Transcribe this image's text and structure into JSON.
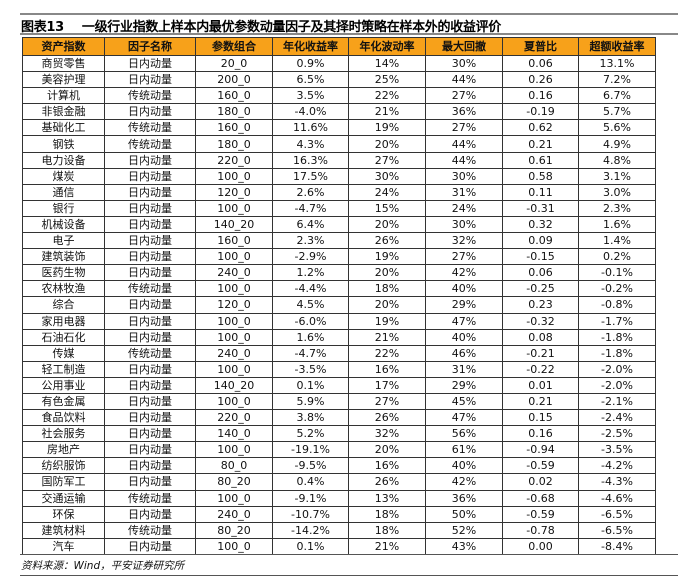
{
  "title": {
    "label": "图表13",
    "text": "一级行业指数上样本内最优参数动量因子及其择时策略在样本外的收益评价"
  },
  "table": {
    "headers": [
      "资产指数",
      "因子名称",
      "参数组合",
      "年化收益率",
      "年化波动率",
      "最大回撤",
      "夏普比",
      "超额收益率"
    ],
    "header_color": "#f7a11a",
    "rows": [
      [
        "商贸零售",
        "日内动量",
        "20_0",
        "0.9%",
        "14%",
        "30%",
        "0.06",
        "13.1%"
      ],
      [
        "美容护理",
        "日内动量",
        "200_0",
        "6.5%",
        "25%",
        "44%",
        "0.26",
        "7.2%"
      ],
      [
        "计算机",
        "传统动量",
        "160_0",
        "3.5%",
        "22%",
        "27%",
        "0.16",
        "6.7%"
      ],
      [
        "非银金融",
        "日内动量",
        "180_0",
        "-4.0%",
        "21%",
        "36%",
        "-0.19",
        "5.7%"
      ],
      [
        "基础化工",
        "传统动量",
        "160_0",
        "11.6%",
        "19%",
        "27%",
        "0.62",
        "5.6%"
      ],
      [
        "钢铁",
        "传统动量",
        "180_0",
        "4.3%",
        "20%",
        "44%",
        "0.21",
        "4.9%"
      ],
      [
        "电力设备",
        "日内动量",
        "220_0",
        "16.3%",
        "27%",
        "44%",
        "0.61",
        "4.8%"
      ],
      [
        "煤炭",
        "日内动量",
        "100_0",
        "17.5%",
        "30%",
        "30%",
        "0.58",
        "3.1%"
      ],
      [
        "通信",
        "日内动量",
        "120_0",
        "2.6%",
        "24%",
        "31%",
        "0.11",
        "3.0%"
      ],
      [
        "银行",
        "日内动量",
        "100_0",
        "-4.7%",
        "15%",
        "24%",
        "-0.31",
        "2.3%"
      ],
      [
        "机械设备",
        "日内动量",
        "140_20",
        "6.4%",
        "20%",
        "30%",
        "0.32",
        "1.6%"
      ],
      [
        "电子",
        "日内动量",
        "160_0",
        "2.3%",
        "26%",
        "32%",
        "0.09",
        "1.4%"
      ],
      [
        "建筑装饰",
        "日内动量",
        "100_0",
        "-2.9%",
        "19%",
        "27%",
        "-0.15",
        "0.2%"
      ],
      [
        "医药生物",
        "日内动量",
        "240_0",
        "1.2%",
        "20%",
        "42%",
        "0.06",
        "-0.1%"
      ],
      [
        "农林牧渔",
        "传统动量",
        "100_0",
        "-4.4%",
        "18%",
        "40%",
        "-0.25",
        "-0.2%"
      ],
      [
        "综合",
        "日内动量",
        "120_0",
        "4.5%",
        "20%",
        "29%",
        "0.23",
        "-0.8%"
      ],
      [
        "家用电器",
        "日内动量",
        "100_0",
        "-6.0%",
        "19%",
        "47%",
        "-0.32",
        "-1.7%"
      ],
      [
        "石油石化",
        "日内动量",
        "100_0",
        "1.6%",
        "21%",
        "40%",
        "0.08",
        "-1.8%"
      ],
      [
        "传媒",
        "传统动量",
        "240_0",
        "-4.7%",
        "22%",
        "46%",
        "-0.21",
        "-1.8%"
      ],
      [
        "轻工制造",
        "日内动量",
        "100_0",
        "-3.5%",
        "16%",
        "31%",
        "-0.22",
        "-2.0%"
      ],
      [
        "公用事业",
        "日内动量",
        "140_20",
        "0.1%",
        "17%",
        "29%",
        "0.01",
        "-2.0%"
      ],
      [
        "有色金属",
        "日内动量",
        "100_0",
        "5.9%",
        "27%",
        "45%",
        "0.21",
        "-2.1%"
      ],
      [
        "食品饮料",
        "日内动量",
        "220_0",
        "3.8%",
        "26%",
        "47%",
        "0.15",
        "-2.4%"
      ],
      [
        "社会服务",
        "日内动量",
        "140_0",
        "5.2%",
        "32%",
        "56%",
        "0.16",
        "-2.5%"
      ],
      [
        "房地产",
        "日内动量",
        "100_0",
        "-19.1%",
        "20%",
        "61%",
        "-0.94",
        "-3.5%"
      ],
      [
        "纺织服饰",
        "日内动量",
        "80_0",
        "-9.5%",
        "16%",
        "40%",
        "-0.59",
        "-4.2%"
      ],
      [
        "国防军工",
        "日内动量",
        "80_20",
        "0.4%",
        "26%",
        "42%",
        "0.02",
        "-4.3%"
      ],
      [
        "交通运输",
        "传统动量",
        "100_0",
        "-9.1%",
        "13%",
        "36%",
        "-0.68",
        "-4.6%"
      ],
      [
        "环保",
        "日内动量",
        "240_0",
        "-10.7%",
        "18%",
        "50%",
        "-0.59",
        "-6.5%"
      ],
      [
        "建筑材料",
        "传统动量",
        "80_20",
        "-14.2%",
        "18%",
        "52%",
        "-0.78",
        "-6.5%"
      ],
      [
        "汽车",
        "日内动量",
        "100_0",
        "0.1%",
        "21%",
        "43%",
        "0.00",
        "-8.4%"
      ]
    ]
  },
  "source": "资料来源：Wind，平安证券研究所"
}
